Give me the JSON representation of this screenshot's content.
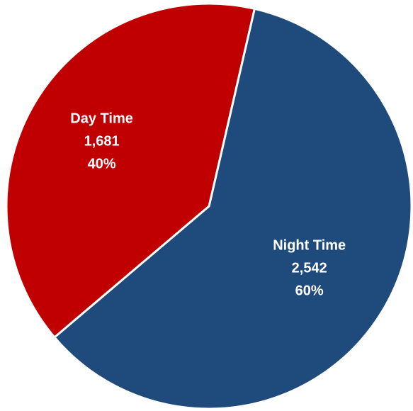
{
  "chart_data": {
    "type": "pie",
    "slices": [
      {
        "label": "Night Time",
        "value": 2542,
        "value_label": "2,542",
        "percent": 60,
        "percent_label": "60%",
        "color": "#1f4a7c"
      },
      {
        "label": "Day Time",
        "value": 1681,
        "value_label": "1,681",
        "percent": 40,
        "percent_label": "40%",
        "color": "#c00000"
      }
    ],
    "start_angle_deg": 13,
    "direction": "clockwise",
    "legend": "none",
    "data_labels": "inside"
  }
}
